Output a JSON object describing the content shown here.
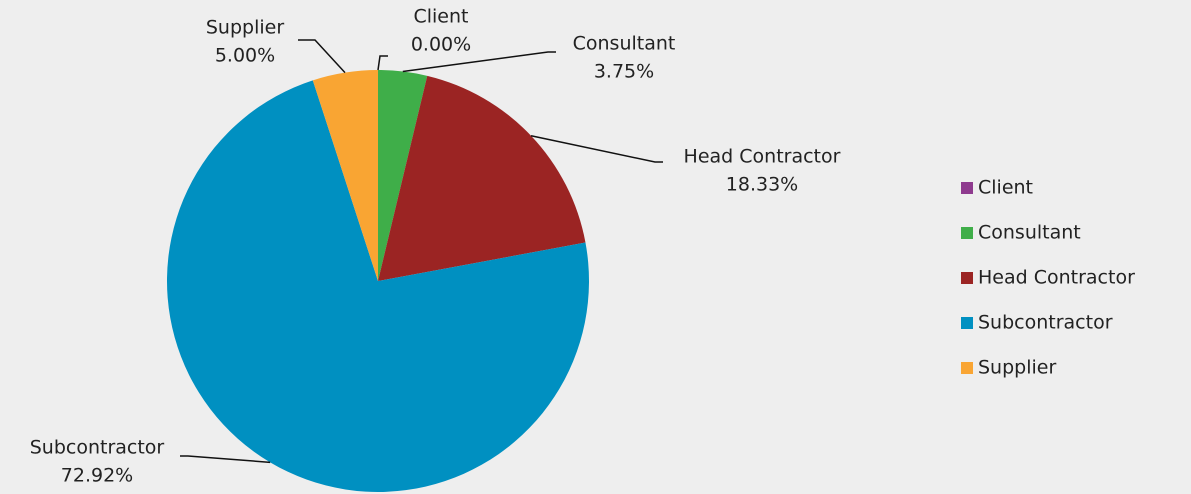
{
  "chart_data": {
    "type": "pie",
    "categories": [
      "Client",
      "Consultant",
      "Head Contractor",
      "Subcontractor",
      "Supplier"
    ],
    "values": [
      0,
      3.75,
      18.33,
      72.92,
      5
    ],
    "value_labels": [
      "0.00%",
      "3.75%",
      "18.33%",
      "72.92%",
      "5.00%"
    ],
    "colors": [
      "#8e3a8e",
      "#3fae49",
      "#9b2423",
      "#0090c1",
      "#f9a533"
    ],
    "legend": "right"
  }
}
